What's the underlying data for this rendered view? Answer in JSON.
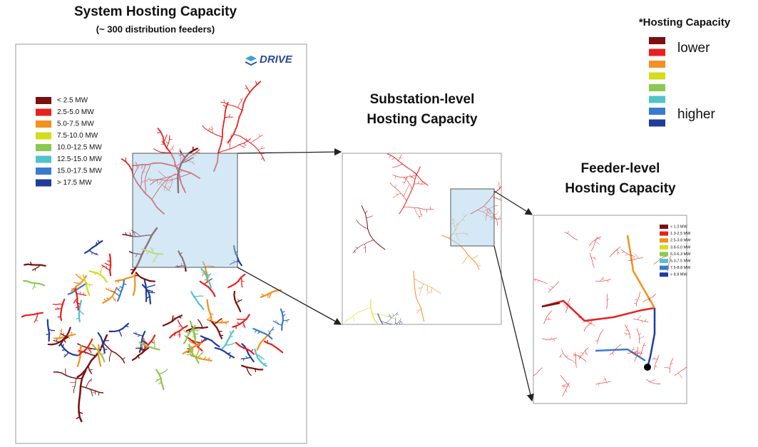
{
  "system": {
    "title": "System Hosting Capacity",
    "subtitle": "(~ 300 distribution feeders)",
    "logo": "DRIVE",
    "legend": [
      "< 2.5 MW",
      "2.5-5.0 MW",
      "5.0-7.5 MW",
      "7.5-10.0 MW",
      "10.0-12.5 MW",
      "12.5-15.0 MW",
      "15.0-17.5 MW",
      "> 17.5 MW"
    ]
  },
  "substation": {
    "title": [
      "Substation-level",
      "Hosting Capacity"
    ]
  },
  "feeder": {
    "title": [
      "Feeder-level",
      "Hosting Capacity"
    ],
    "legend": [
      "< 1.3 MW",
      "1.3-2.5 MW",
      "2.5-3.8 MW",
      "3.8-5.0 MW",
      "5.0-6.3 MW",
      "6.3-7.5 MW",
      "7.5-8.8 MW",
      "> 8.8 MW"
    ]
  },
  "key": {
    "title": "*Hosting Capacity",
    "lower": "lower",
    "higher": "higher"
  }
}
